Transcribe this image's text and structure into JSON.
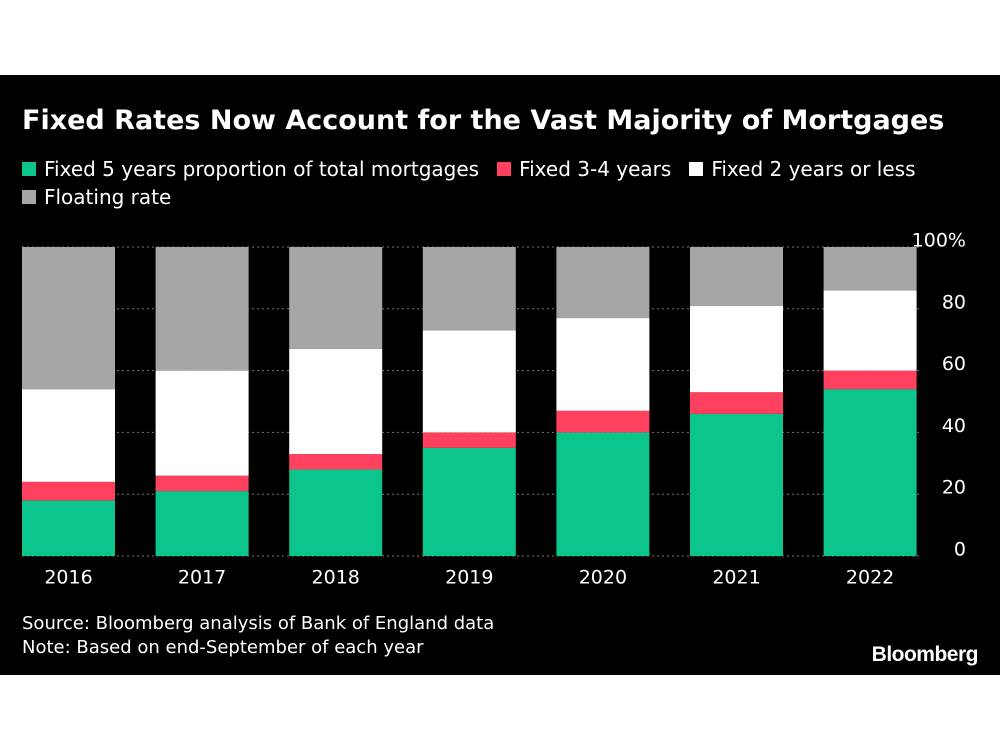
{
  "chart_data": {
    "type": "bar",
    "stacked": true,
    "title": "Fixed Rates Now Account for the Vast Majority of Mortgages",
    "categories": [
      "2016",
      "2017",
      "2018",
      "2019",
      "2020",
      "2021",
      "2022"
    ],
    "series": [
      {
        "name": "Fixed 5 years proportion of total mortgages",
        "color": "#0bc58d",
        "values": [
          18,
          21,
          28,
          35,
          40,
          46,
          54
        ]
      },
      {
        "name": "Fixed 3-4 years",
        "color": "#ff415f",
        "values": [
          6,
          5,
          5,
          5,
          7,
          7,
          6
        ]
      },
      {
        "name": "Fixed 2 years or less",
        "color": "#ffffff",
        "values": [
          30,
          34,
          34,
          33,
          30,
          28,
          26
        ]
      },
      {
        "name": "Floating rate",
        "color": "#a6a6a6",
        "values": [
          46,
          40,
          33,
          27,
          23,
          19,
          14
        ]
      }
    ],
    "ylim": [
      0,
      100
    ],
    "yticks": [
      0,
      20,
      40,
      60,
      80,
      {
        "value": 100,
        "label": "100%"
      }
    ],
    "grid": true,
    "source": "Source: Bloomberg analysis of Bank of England data",
    "note": "Note: Based on end-September of each year",
    "brand": "Bloomberg"
  }
}
